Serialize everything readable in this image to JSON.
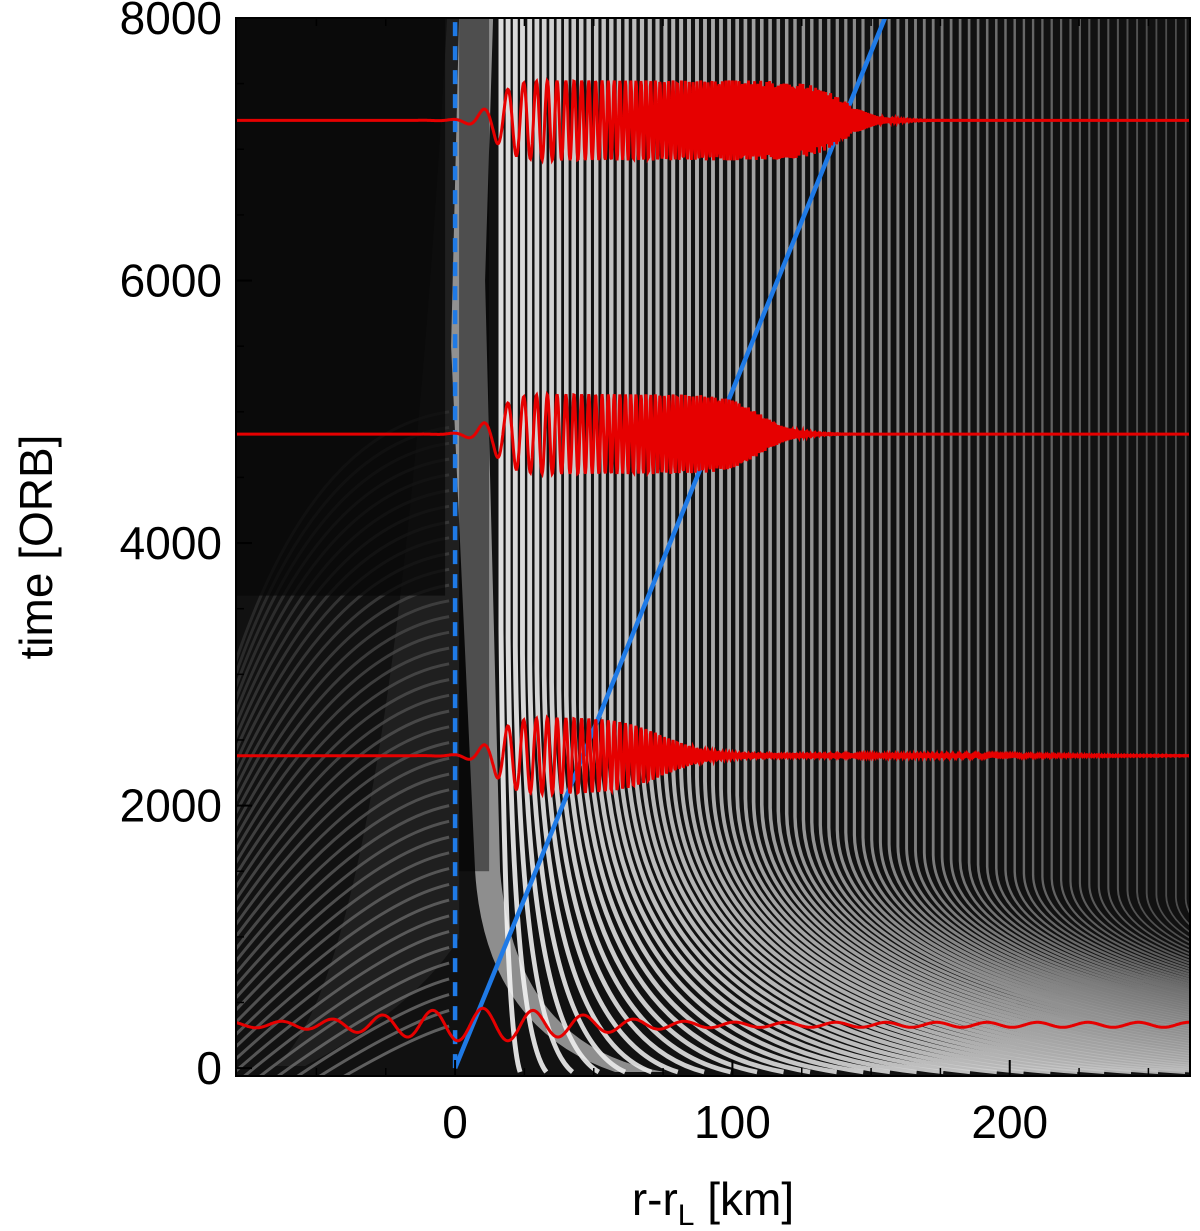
{
  "chart_data": {
    "type": "line",
    "background": "grayscale density map (space-time diagram) with spiral wave crests",
    "xlabel": "r-r",
    "xlabel_sub": "L",
    "xlabel_unit": " [km]",
    "ylabel": "time [ORB]",
    "xlim": [
      -79,
      265
    ],
    "ylim": [
      -60,
      8000
    ],
    "xticks": [
      0,
      100,
      200
    ],
    "yticks": [
      0,
      2000,
      4000,
      6000,
      8000
    ],
    "series": [
      {
        "style": "dashed",
        "color": "#1f7ae6",
        "x": [
          0,
          0
        ],
        "y": [
          0,
          8000
        ]
      },
      {
        "style": "solid",
        "color": "#1f7ae6",
        "x": [
          0,
          155
        ],
        "y": [
          0,
          8000
        ]
      },
      {
        "style": "solid",
        "color": "#e60000",
        "baseline_time": 7220,
        "envelope_peak_x": 75,
        "envelope_end_x": 140
      },
      {
        "style": "solid",
        "color": "#e60000",
        "baseline_time": 4830,
        "envelope_peak_x": 65,
        "envelope_end_x": 110
      },
      {
        "style": "solid",
        "color": "#e60000",
        "baseline_time": 2380,
        "envelope_peak_x": 40,
        "envelope_end_x": 75
      },
      {
        "style": "solid",
        "color": "#e60000",
        "baseline_time": 330,
        "envelope_peak_x": 10,
        "envelope_end_x": 265
      }
    ]
  }
}
